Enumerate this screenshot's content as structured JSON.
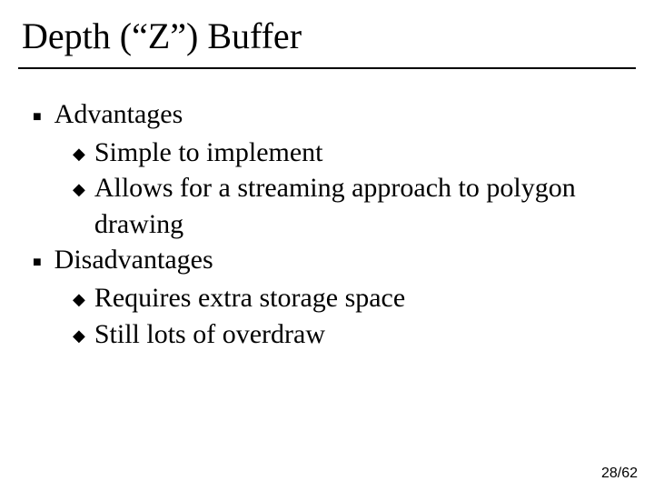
{
  "slide": {
    "title": "Depth (“Z”) Buffer",
    "title_fontsize": 40,
    "body_fontsize": 30,
    "text_color": "#000000",
    "background_color": "#ffffff",
    "rule_color": "#000000",
    "bullets": {
      "level1_marker": "■",
      "level2_marker": "◆"
    },
    "items": [
      {
        "label": "Advantages",
        "sub": [
          {
            "label": "Simple to implement"
          },
          {
            "label": "Allows for a streaming approach to polygon drawing"
          }
        ]
      },
      {
        "label": "Disadvantages",
        "sub": [
          {
            "label": "Requires extra storage space"
          },
          {
            "label": "Still lots of overdraw"
          }
        ]
      }
    ],
    "page": {
      "current": 28,
      "total": 62,
      "separator": "/"
    }
  }
}
